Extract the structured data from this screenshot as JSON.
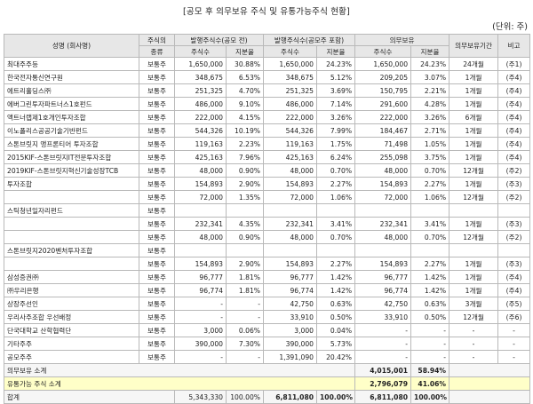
{
  "title": "[공모 후 의무보유 주식 및 유통가능주식 현황]",
  "unit": "(단위: 주)",
  "headers": {
    "name": "성명 (회사명)",
    "stock_type_1": "주식의",
    "stock_type_2": "종류",
    "pre_group": "발행주식수(공모 전)",
    "post_group": "발행주식수(공모주 포함)",
    "lock_group": "의무보유",
    "lock_period": "의무보유기간",
    "note": "비고",
    "shares": "주식수",
    "ratio": "지분율"
  },
  "rows": [
    {
      "name": "최대주주등",
      "type": "보통주",
      "pre_shares": "1,650,000",
      "pre_ratio": "30.88%",
      "post_shares": "1,650,000",
      "post_ratio": "24.23%",
      "lock_shares": "1,650,000",
      "lock_ratio": "24.23%",
      "period": "24개월",
      "note": "(주1)"
    },
    {
      "name": "한국전자통신연구원",
      "type": "보통주",
      "pre_shares": "348,675",
      "pre_ratio": "6.53%",
      "post_shares": "348,675",
      "post_ratio": "5.12%",
      "lock_shares": "209,205",
      "lock_ratio": "3.07%",
      "period": "1개월",
      "note": "(주4)"
    },
    {
      "name": "에트리홀딩스㈜",
      "type": "보통주",
      "pre_shares": "251,325",
      "pre_ratio": "4.70%",
      "post_shares": "251,325",
      "post_ratio": "3.69%",
      "lock_shares": "150,795",
      "lock_ratio": "2.21%",
      "period": "1개월",
      "note": "(주4)"
    },
    {
      "name": "에버그린투자파트너스1호펀드",
      "type": "보통주",
      "pre_shares": "486,000",
      "pre_ratio": "9.10%",
      "post_shares": "486,000",
      "post_ratio": "7.14%",
      "lock_shares": "291,600",
      "lock_ratio": "4.28%",
      "period": "1개월",
      "note": "(주4)"
    },
    {
      "name": "액트너랩제1호개인투자조합",
      "type": "보통주",
      "pre_shares": "222,000",
      "pre_ratio": "4.15%",
      "post_shares": "222,000",
      "post_ratio": "3.26%",
      "lock_shares": "222,000",
      "lock_ratio": "3.26%",
      "period": "6개월",
      "note": "(주4)"
    },
    {
      "name": "이노폴리스공공기술기반펀드",
      "type": "보통주",
      "pre_shares": "544,326",
      "pre_ratio": "10.19%",
      "post_shares": "544,326",
      "post_ratio": "7.99%",
      "lock_shares": "184,467",
      "lock_ratio": "2.71%",
      "period": "1개월",
      "note": "(주4)"
    },
    {
      "name": "스톤브릿지 앵프론티어 투자조합",
      "type": "보통주",
      "pre_shares": "119,163",
      "pre_ratio": "2.23%",
      "post_shares": "119,163",
      "post_ratio": "1.75%",
      "lock_shares": "71,498",
      "lock_ratio": "1.05%",
      "period": "1개월",
      "note": "(주4)"
    },
    {
      "name": "2015KIF-스톤브릿지IT전문투자조합",
      "type": "보통주",
      "pre_shares": "425,163",
      "pre_ratio": "7.96%",
      "post_shares": "425,163",
      "post_ratio": "6.24%",
      "lock_shares": "255,098",
      "lock_ratio": "3.75%",
      "period": "1개월",
      "note": "(주4)"
    },
    {
      "name": "2019KIF-스톤브릿지혁신기술성장TCB",
      "type": "보통주",
      "pre_shares": "48,000",
      "pre_ratio": "0.90%",
      "post_shares": "48,000",
      "post_ratio": "0.70%",
      "lock_shares": "48,000",
      "lock_ratio": "0.70%",
      "period": "12개월",
      "note": "(주2)"
    },
    {
      "name": "투자조합",
      "type": "보통주",
      "pre_shares": "154,893",
      "pre_ratio": "2.90%",
      "post_shares": "154,893",
      "post_ratio": "2.27%",
      "lock_shares": "154,893",
      "lock_ratio": "2.27%",
      "period": "1개월",
      "note": "(주3)"
    },
    {
      "name": "",
      "type": "보통주",
      "pre_shares": "72,000",
      "pre_ratio": "1.35%",
      "post_shares": "72,000",
      "post_ratio": "1.06%",
      "lock_shares": "72,000",
      "lock_ratio": "1.06%",
      "period": "12개월",
      "note": "(주2)"
    },
    {
      "name": "스틱청년일자리펀드",
      "type": "보통주",
      "pre_shares": "",
      "pre_ratio": "",
      "post_shares": "",
      "post_ratio": "",
      "lock_shares": "",
      "lock_ratio": "",
      "period": "",
      "note": ""
    },
    {
      "name": "",
      "type": "보통주",
      "pre_shares": "232,341",
      "pre_ratio": "4.35%",
      "post_shares": "232,341",
      "post_ratio": "3.41%",
      "lock_shares": "232,341",
      "lock_ratio": "3.41%",
      "period": "1개월",
      "note": "(주3)"
    },
    {
      "name": "",
      "type": "보통주",
      "pre_shares": "48,000",
      "pre_ratio": "0.90%",
      "post_shares": "48,000",
      "post_ratio": "0.70%",
      "lock_shares": "48,000",
      "lock_ratio": "0.70%",
      "period": "12개월",
      "note": "(주2)"
    },
    {
      "name": "스톤브릿지2020벤처투자조합",
      "type": "보통주",
      "pre_shares": "",
      "pre_ratio": "",
      "post_shares": "",
      "post_ratio": "",
      "lock_shares": "",
      "lock_ratio": "",
      "period": "",
      "note": ""
    },
    {
      "name": "",
      "type": "보통주",
      "pre_shares": "154,893",
      "pre_ratio": "2.90%",
      "post_shares": "154,893",
      "post_ratio": "2.27%",
      "lock_shares": "154,893",
      "lock_ratio": "2.27%",
      "period": "1개월",
      "note": "(주3)"
    },
    {
      "name": "삼성증권㈜",
      "type": "보통주",
      "pre_shares": "96,777",
      "pre_ratio": "1.81%",
      "post_shares": "96,777",
      "post_ratio": "1.42%",
      "lock_shares": "96,777",
      "lock_ratio": "1.42%",
      "period": "1개월",
      "note": "(주4)"
    },
    {
      "name": "㈜우리은행",
      "type": "보통주",
      "pre_shares": "96,774",
      "pre_ratio": "1.81%",
      "post_shares": "96,774",
      "post_ratio": "1.42%",
      "lock_shares": "96,774",
      "lock_ratio": "1.42%",
      "period": "1개월",
      "note": "(주4)"
    },
    {
      "name": "상장주선인",
      "type": "보통주",
      "pre_shares": "-",
      "pre_ratio": "-",
      "post_shares": "42,750",
      "post_ratio": "0.63%",
      "lock_shares": "42,750",
      "lock_ratio": "0.63%",
      "period": "3개월",
      "note": "(주5)"
    },
    {
      "name": "우리사주조합 우선배정",
      "type": "보통주",
      "pre_shares": "-",
      "pre_ratio": "-",
      "post_shares": "33,910",
      "post_ratio": "0.50%",
      "lock_shares": "33,910",
      "lock_ratio": "0.50%",
      "period": "12개월",
      "note": "(주6)"
    },
    {
      "name": "단국대학교 산학협력단",
      "type": "보통주",
      "pre_shares": "3,000",
      "pre_ratio": "0.06%",
      "post_shares": "3,000",
      "post_ratio": "0.04%",
      "lock_shares": "-",
      "lock_ratio": "-",
      "period": "-",
      "note": "-"
    },
    {
      "name": "기타주주",
      "type": "보통주",
      "pre_shares": "390,000",
      "pre_ratio": "7.30%",
      "post_shares": "390,000",
      "post_ratio": "5.73%",
      "lock_shares": "-",
      "lock_ratio": "-",
      "period": "-",
      "note": "-"
    },
    {
      "name": "공모주주",
      "type": "보통주",
      "pre_shares": "-",
      "pre_ratio": "-",
      "post_shares": "1,391,090",
      "post_ratio": "20.42%",
      "lock_shares": "-",
      "lock_ratio": "-",
      "period": "-",
      "note": "-"
    }
  ],
  "lock_subtotal": {
    "label": "의무보유 소계",
    "shares": "4,015,001",
    "ratio": "58.94%"
  },
  "float_subtotal": {
    "label": "유통가능 주식 소계",
    "shares": "2,796,079",
    "ratio": "41.06%"
  },
  "total": {
    "label": "합계",
    "pre_shares": "5,343,330",
    "pre_ratio": "100.00%",
    "post_shares": "6,811,080",
    "post_ratio": "100.00%",
    "lock_shares": "6,811,080",
    "lock_ratio": "100.00%"
  }
}
